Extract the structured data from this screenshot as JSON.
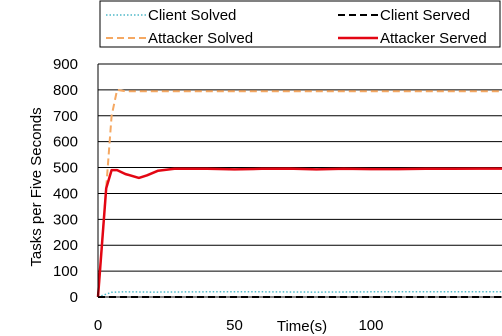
{
  "chart_data": {
    "type": "line",
    "xlabel": "Time(s)",
    "ylabel": "Tasks per Five Seconds",
    "xlim": [
      0,
      148
    ],
    "ylim": [
      0,
      900
    ],
    "x_ticks": [
      "0",
      "50",
      "100"
    ],
    "y_ticks": [
      "0",
      "100",
      "200",
      "300",
      "400",
      "500",
      "600",
      "700",
      "800",
      "900"
    ],
    "grid": "horizontal",
    "legend_position": "top",
    "series": [
      {
        "name": "Client Solved",
        "color": "#4fb8c8",
        "style": "dotted",
        "x": [
          0,
          5,
          10,
          20,
          40,
          60,
          80,
          100,
          120,
          148
        ],
        "y": [
          0,
          18,
          20,
          19,
          20,
          20,
          19,
          20,
          20,
          20
        ]
      },
      {
        "name": "Client Served",
        "color": "#000000",
        "style": "dashed",
        "x": [
          0,
          20,
          40,
          60,
          80,
          100,
          120,
          148
        ],
        "y": [
          0,
          0,
          0,
          0,
          0,
          0,
          0,
          0
        ]
      },
      {
        "name": "Attacker Solved",
        "color": "#f5a862",
        "style": "dashed",
        "x": [
          0,
          5,
          7,
          10,
          20,
          40,
          60,
          80,
          100,
          120,
          148
        ],
        "y": [
          0,
          700,
          800,
          795,
          795,
          795,
          795,
          795,
          795,
          795,
          795
        ]
      },
      {
        "name": "Attacker Served",
        "color": "#e30613",
        "style": "solid",
        "x": [
          0,
          3,
          5,
          7,
          10,
          15,
          18,
          22,
          28,
          40,
          50,
          60,
          70,
          80,
          90,
          100,
          110,
          120,
          130,
          140,
          148
        ],
        "y": [
          0,
          420,
          490,
          490,
          475,
          460,
          470,
          488,
          495,
          495,
          493,
          495,
          496,
          493,
          495,
          494,
          494,
          495,
          495,
          496,
          496
        ]
      }
    ]
  }
}
